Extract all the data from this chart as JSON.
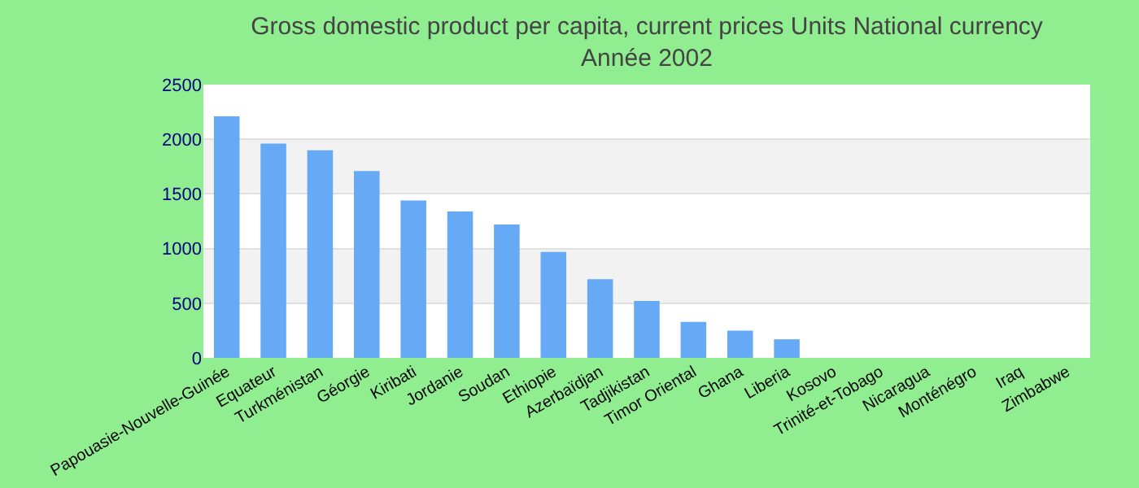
{
  "chart_data": {
    "type": "bar",
    "title": "Gross domestic product per capita, current prices Units National currency",
    "subtitle": "Année 2002",
    "categories": [
      "Papouasie-Nouvelle-Guinée",
      "Equateur",
      "Turkménistan",
      "Géorgie",
      "Kiribati",
      "Jordanie",
      "Soudan",
      "Ethiopie",
      "Azerbaïdjan",
      "Tadjikistan",
      "Timor Oriental",
      "Ghana",
      "Liberia",
      "Kosovo",
      "Trinité-et-Tobago",
      "Nicaragua",
      "Monténégro",
      "Iraq",
      "Zimbabwe"
    ],
    "values": [
      2210,
      1960,
      1900,
      1710,
      1440,
      1340,
      1220,
      970,
      720,
      520,
      330,
      250,
      170,
      null,
      null,
      null,
      null,
      null,
      null
    ],
    "color": "#66aaf5",
    "ylim": [
      0,
      2500
    ],
    "yticks": [
      0,
      500,
      1000,
      1500,
      2000,
      2500
    ],
    "grid": "y"
  }
}
